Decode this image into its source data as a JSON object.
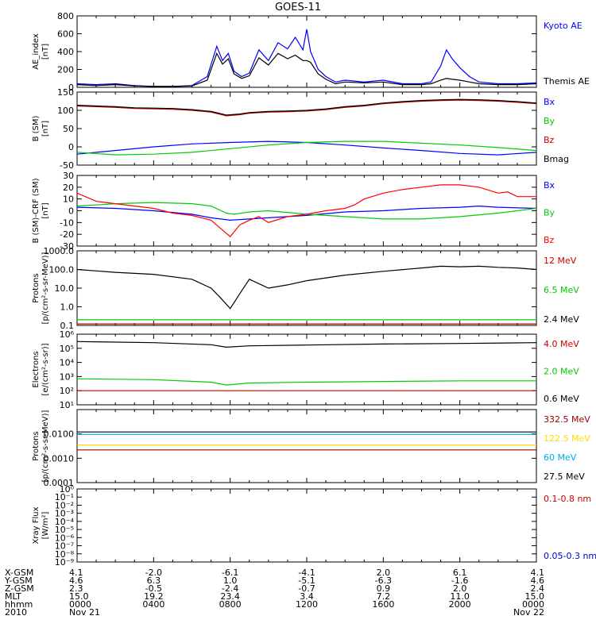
{
  "title": "GOES-11",
  "chart_data": [
    {
      "type": "line",
      "ylabel": "AE_index\n[nT]",
      "ylim": [
        0,
        800
      ],
      "yticks": [
        "0",
        "200",
        "400",
        "600",
        "800"
      ],
      "series": [
        {
          "name": "Kyoto AE",
          "color": "#0000ff",
          "x": [
            0,
            1,
            2,
            3,
            4,
            5,
            6,
            6.8,
            7.3,
            7.6,
            7.9,
            8.2,
            8.6,
            9.0,
            9.5,
            10.0,
            10.5,
            11.0,
            11.4,
            11.8,
            12.0,
            12.2,
            12.6,
            13.0,
            13.5,
            14,
            15,
            16,
            17,
            18,
            18.5,
            19.0,
            19.3,
            19.6,
            20.0,
            20.5,
            21.0,
            22,
            23,
            24
          ],
          "y": [
            40,
            30,
            40,
            20,
            10,
            10,
            20,
            120,
            460,
            300,
            380,
            180,
            120,
            160,
            420,
            300,
            500,
            430,
            560,
            420,
            650,
            400,
            200,
            120,
            60,
            80,
            60,
            80,
            40,
            40,
            60,
            240,
            420,
            320,
            220,
            120,
            60,
            40,
            40,
            50
          ]
        },
        {
          "name": "Themis AE",
          "color": "#000000",
          "x": [
            0,
            1,
            2,
            3,
            4,
            5,
            6,
            6.8,
            7.3,
            7.6,
            7.9,
            8.2,
            8.6,
            9.0,
            9.5,
            10.0,
            10.5,
            11.0,
            11.4,
            11.8,
            12.0,
            12.2,
            12.6,
            13.0,
            13.5,
            14,
            15,
            16,
            17,
            18,
            18.5,
            19.0,
            19.3,
            19.6,
            20.0,
            20.5,
            21.0,
            22,
            23,
            24
          ],
          "y": [
            30,
            20,
            30,
            15,
            10,
            10,
            15,
            80,
            380,
            260,
            320,
            150,
            100,
            130,
            330,
            250,
            380,
            320,
            360,
            300,
            300,
            280,
            150,
            90,
            40,
            60,
            50,
            60,
            30,
            30,
            40,
            80,
            100,
            90,
            80,
            60,
            40,
            30,
            30,
            40
          ]
        }
      ]
    },
    {
      "type": "line",
      "ylabel": "B (SM)\n[nT]",
      "ylim": [
        -50,
        150
      ],
      "yticks": [
        "-50",
        "0",
        "50",
        "100",
        "150"
      ],
      "series": [
        {
          "name": "Bx",
          "color": "#0000ff",
          "x": [
            0,
            2,
            4,
            6,
            8,
            10,
            12,
            14,
            16,
            18,
            20,
            22,
            24
          ],
          "y": [
            -20,
            -10,
            0,
            8,
            12,
            15,
            12,
            5,
            -3,
            -10,
            -18,
            -22,
            -15
          ]
        },
        {
          "name": "By",
          "color": "#00cc00",
          "x": [
            0,
            2,
            4,
            6,
            8,
            10,
            12,
            14,
            16,
            18,
            20,
            22,
            24
          ],
          "y": [
            -15,
            -22,
            -20,
            -15,
            -5,
            5,
            12,
            15,
            15,
            10,
            5,
            -2,
            -10
          ]
        },
        {
          "name": "Bz",
          "color": "#cc0000",
          "x": [
            0,
            1,
            2,
            3,
            4,
            5,
            6,
            7,
            7.8,
            8.5,
            9,
            10,
            11,
            12,
            13,
            14,
            15,
            16,
            17,
            18,
            19,
            20,
            21,
            22,
            23,
            24
          ],
          "y": [
            112,
            110,
            108,
            105,
            104,
            103,
            100,
            95,
            85,
            88,
            92,
            95,
            96,
            98,
            102,
            108,
            112,
            118,
            122,
            125,
            127,
            128,
            127,
            125,
            122,
            118
          ]
        },
        {
          "name": "Bmag",
          "color": "#000000",
          "x": [
            0,
            1,
            2,
            3,
            4,
            5,
            6,
            7,
            7.8,
            8.5,
            9,
            10,
            11,
            12,
            13,
            14,
            15,
            16,
            17,
            18,
            19,
            20,
            21,
            22,
            23,
            24
          ],
          "y": [
            114,
            112,
            110,
            107,
            106,
            105,
            102,
            97,
            87,
            90,
            94,
            97,
            98,
            100,
            104,
            110,
            114,
            120,
            124,
            127,
            129,
            130,
            129,
            127,
            124,
            120
          ]
        }
      ]
    },
    {
      "type": "line",
      "ylabel": "B (SM)-CRF (SM)\n[nT]",
      "ylim": [
        -30,
        30
      ],
      "yticks": [
        "-30",
        "-20",
        "-10",
        "0",
        "10",
        "20",
        "30"
      ],
      "series": [
        {
          "name": "Bx",
          "color": "#0000ff",
          "x": [
            0,
            2,
            4,
            6,
            7,
            8,
            9,
            10,
            12,
            14,
            16,
            18,
            20,
            21,
            22,
            24
          ],
          "y": [
            3,
            2,
            0,
            -3,
            -6,
            -8,
            -7,
            -6,
            -4,
            -1,
            0,
            2,
            3,
            4,
            3,
            2
          ]
        },
        {
          "name": "By",
          "color": "#00cc00",
          "x": [
            0,
            2,
            4,
            6,
            7,
            7.8,
            8.2,
            9,
            10,
            12,
            14,
            16,
            18,
            20,
            22,
            24
          ],
          "y": [
            4,
            6,
            7,
            6,
            4,
            -2,
            -3,
            -1,
            0,
            -3,
            -5,
            -7,
            -7,
            -5,
            -2,
            2
          ]
        },
        {
          "name": "Bz",
          "color": "#ff0000",
          "x": [
            0,
            1,
            2,
            3,
            4,
            5,
            6,
            7,
            7.5,
            8,
            8.5,
            9,
            9.5,
            10,
            11,
            12,
            13,
            14,
            14.5,
            15,
            16,
            17,
            18,
            19,
            20,
            21,
            22,
            22.5,
            23,
            24
          ],
          "y": [
            15,
            8,
            6,
            4,
            2,
            -2,
            -4,
            -8,
            -15,
            -22,
            -12,
            -8,
            -5,
            -10,
            -5,
            -3,
            0,
            2,
            5,
            10,
            15,
            18,
            20,
            22,
            22,
            20,
            15,
            16,
            12,
            12
          ]
        }
      ]
    },
    {
      "type": "line",
      "log": true,
      "ylabel": "Protons\n[p/(cm²-s-sr-MeV)]",
      "ylim": [
        0.1,
        1000
      ],
      "yticks": [
        "0.1",
        "1.0",
        "10.0",
        "100.0",
        "1000.0"
      ],
      "series": [
        {
          "name": "12 MeV",
          "color": "#cc0000",
          "x": [
            0,
            24
          ],
          "y": [
            0.12,
            0.12
          ]
        },
        {
          "name": "6.5 MeV",
          "color": "#00cc00",
          "x": [
            0,
            24
          ],
          "y": [
            0.2,
            0.2
          ]
        },
        {
          "name": "2.4 MeV",
          "color": "#000000",
          "x": [
            0,
            2,
            4,
            6,
            7,
            7.5,
            8,
            8.5,
            9,
            10,
            11,
            12,
            14,
            16,
            18,
            19,
            20,
            21,
            22,
            23,
            24
          ],
          "y": [
            100,
            70,
            55,
            30,
            10,
            3,
            0.8,
            5,
            30,
            10,
            15,
            25,
            50,
            80,
            120,
            150,
            140,
            150,
            130,
            120,
            100
          ]
        }
      ]
    },
    {
      "type": "line",
      "log": true,
      "ylabel": "Electrons\n[e/(cm²-s-sr)]",
      "ylim": [
        10,
        1000000
      ],
      "yticks": [
        "10¹",
        "10²",
        "10³",
        "10⁴",
        "10⁵",
        "10⁶"
      ],
      "series": [
        {
          "name": "4.0 MeV",
          "color": "#cc0000",
          "x": [
            0,
            24
          ],
          "y": [
            100,
            100
          ]
        },
        {
          "name": "2.0 MeV",
          "color": "#00cc00",
          "x": [
            0,
            4,
            7,
            7.8,
            9,
            12,
            16,
            20,
            24
          ],
          "y": [
            700,
            600,
            400,
            250,
            350,
            400,
            450,
            500,
            500
          ]
        },
        {
          "name": "0.6 MeV",
          "color": "#000000",
          "x": [
            0,
            4,
            7,
            7.8,
            9,
            12,
            16,
            20,
            24
          ],
          "y": [
            300000,
            250000,
            180000,
            120000,
            150000,
            170000,
            200000,
            220000,
            250000
          ]
        }
      ]
    },
    {
      "type": "line",
      "log": true,
      "ylabel": "Protons\n[p/(cm²-s-sr-MeV)]",
      "ylim": [
        0.0001,
        0.1
      ],
      "yticks": [
        "0.0001",
        "0.0010",
        "0.0100"
      ],
      "series": [
        {
          "name": "332.5 MeV",
          "color": "#990000",
          "x": [
            0,
            24
          ],
          "y": [
            0.0022,
            0.0022
          ]
        },
        {
          "name": "122.5 MeV",
          "color": "#ffdd00",
          "x": [
            0,
            24
          ],
          "y": [
            0.0035,
            0.0035
          ]
        },
        {
          "name": "60 MeV",
          "color": "#00aaee",
          "x": [
            0,
            24
          ],
          "y": [
            0.0095,
            0.0095
          ]
        },
        {
          "name": "27.5 MeV",
          "color": "#000000",
          "x": [
            0,
            24
          ],
          "y": [
            0.012,
            0.012
          ]
        }
      ]
    },
    {
      "type": "line",
      "log": true,
      "ylabel": "Xray Flux\n[W/m²]",
      "ylim": [
        1e-09,
        1
      ],
      "yticks": [
        "10⁻⁹",
        "10⁻⁸",
        "10⁻⁷",
        "10⁻⁶",
        "10⁻⁵",
        "10⁻⁴",
        "10⁻³",
        "10⁻²",
        "10⁻¹",
        "10⁰"
      ],
      "series": [
        {
          "name": "0.1-0.8 nm",
          "color": "#cc0000",
          "x": [],
          "y": []
        },
        {
          "name": "0.05-0.3 nm",
          "color": "#0000cc",
          "x": [],
          "y": []
        }
      ]
    }
  ],
  "x_axis": {
    "row_labels": [
      "X-GSM",
      "Y-GSM",
      "Z-GSM",
      "MLT",
      "hhmm",
      "2010"
    ],
    "columns": [
      [
        "4.1",
        "4.6",
        "2.3",
        "15.0",
        "0000",
        "Nov 21"
      ],
      [
        "-2.0",
        "6.3",
        "-0.5",
        "19.2",
        "0400",
        ""
      ],
      [
        "-6.1",
        "1.0",
        "-2.4",
        "23.4",
        "0800",
        ""
      ],
      [
        "-4.1",
        "-5.1",
        "-0.7",
        "3.4",
        "1200",
        ""
      ],
      [
        "2.0",
        "-6.3",
        "0.9",
        "7.2",
        "1600",
        ""
      ],
      [
        "6.1",
        "-1.6",
        "2.0",
        "11.0",
        "2000",
        ""
      ],
      [
        "4.1",
        "4.6",
        "2.4",
        "15.0",
        "0000",
        "Nov 22"
      ]
    ]
  }
}
